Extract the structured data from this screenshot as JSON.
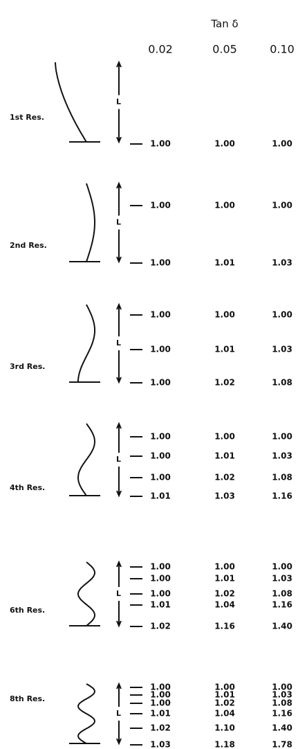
{
  "header": {
    "title": "Tan δ",
    "columns": [
      "0.02",
      "0.05",
      "0.10"
    ]
  },
  "length_label": "L",
  "sections": [
    {
      "label": "1st Res.",
      "rows": [
        [
          "1.00",
          "1.00",
          "1.00"
        ]
      ]
    },
    {
      "label": "2nd Res.",
      "rows": [
        [
          "1.00",
          "1.00",
          "1.00"
        ],
        [
          "1.00",
          "1.01",
          "1.03"
        ]
      ]
    },
    {
      "label": "3rd Res.",
      "rows": [
        [
          "1.00",
          "1.00",
          "1.00"
        ],
        [
          "1.00",
          "1.01",
          "1.03"
        ],
        [
          "1.00",
          "1.02",
          "1.08"
        ]
      ]
    },
    {
      "label": "4th Res.",
      "rows": [
        [
          "1.00",
          "1.00",
          "1.00"
        ],
        [
          "1.00",
          "1.01",
          "1.03"
        ],
        [
          "1.00",
          "1.02",
          "1.08"
        ],
        [
          "1.01",
          "1.03",
          "1.16"
        ]
      ]
    },
    {
      "label": "6th Res.",
      "rows": [
        [
          "1.00",
          "1.00",
          "1.00"
        ],
        [
          "1.00",
          "1.01",
          "1.03"
        ],
        [
          "1.00",
          "1.02",
          "1.08"
        ],
        [
          "1.01",
          "1.04",
          "1.16"
        ],
        [
          "1.02",
          "1.16",
          "1.40"
        ]
      ]
    },
    {
      "label": "8th Res.",
      "rows": [
        [
          "1.00",
          "1.00",
          "1.00"
        ],
        [
          "1.00",
          "1.01",
          "1.03"
        ],
        [
          "1.00",
          "1.02",
          "1.08"
        ],
        [
          "1.01",
          "1.04",
          "1.16"
        ],
        [
          "1.02",
          "1.10",
          "1.40"
        ],
        [
          "1.03",
          "1.18",
          "1.78"
        ]
      ]
    }
  ]
}
